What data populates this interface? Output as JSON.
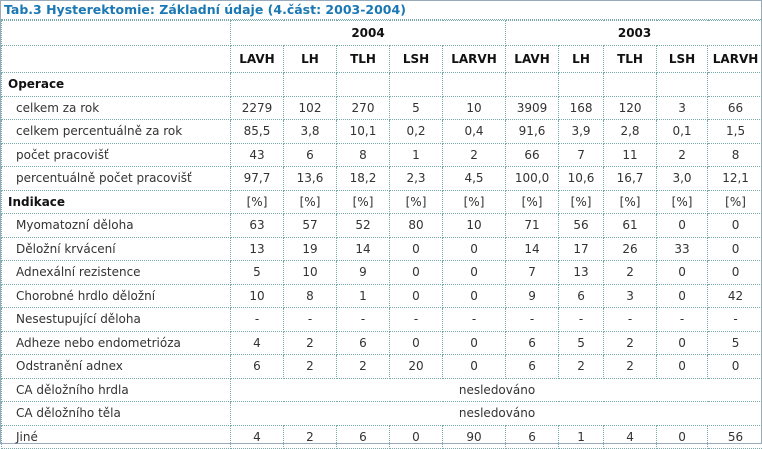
{
  "title": "Tab.3 Hysterektomie: Základní údaje (4.část: 2003-2004)",
  "years": [
    "2004",
    "2003"
  ],
  "columns": [
    "LAVH",
    "LH",
    "TLH",
    "LSH",
    "LARVH",
    "LAVH",
    "LH",
    "TLH",
    "LSH",
    "LARVH"
  ],
  "rows": [
    {
      "type": "section",
      "label": "Operace",
      "cells": []
    },
    {
      "type": "data",
      "label": "celkem za rok",
      "cells": [
        "2279",
        "102",
        "270",
        "5",
        "10",
        "3909",
        "168",
        "120",
        "3",
        "66"
      ]
    },
    {
      "type": "data",
      "label": "celkem percentuálně za rok",
      "cells": [
        "85,5",
        "3,8",
        "10,1",
        "0,2",
        "0,4",
        "91,6",
        "3,9",
        "2,8",
        "0,1",
        "1,5"
      ]
    },
    {
      "type": "data",
      "label": "počet pracovišť",
      "cells": [
        "43",
        "6",
        "8",
        "1",
        "2",
        "66",
        "7",
        "11",
        "2",
        "8"
      ]
    },
    {
      "type": "data",
      "label": "percentuálně počet pracovišť",
      "cells": [
        "97,7",
        "13,6",
        "18,2",
        "2,3",
        "4,5",
        "100,0",
        "10,6",
        "16,7",
        "3,0",
        "12,1"
      ]
    },
    {
      "type": "section",
      "label": "Indikace",
      "cells": [
        "[%]",
        "[%]",
        "[%]",
        "[%]",
        "[%]",
        "[%]",
        "[%]",
        "[%]",
        "[%]",
        "[%]"
      ]
    },
    {
      "type": "data",
      "label": "Myomatozní děloha",
      "cells": [
        "63",
        "57",
        "52",
        "80",
        "10",
        "71",
        "56",
        "61",
        "0",
        "0"
      ]
    },
    {
      "type": "data",
      "label": "Děložní krvácení",
      "cells": [
        "13",
        "19",
        "14",
        "0",
        "0",
        "14",
        "17",
        "26",
        "33",
        "0"
      ]
    },
    {
      "type": "data",
      "label": "Adnexální rezistence",
      "cells": [
        "5",
        "10",
        "9",
        "0",
        "0",
        "7",
        "13",
        "2",
        "0",
        "0"
      ]
    },
    {
      "type": "data",
      "label": "Chorobné hrdlo děložní",
      "cells": [
        "10",
        "8",
        "1",
        "0",
        "0",
        "9",
        "6",
        "3",
        "0",
        "42"
      ]
    },
    {
      "type": "data",
      "label": "Nesestupující děloha",
      "cells": [
        "-",
        "-",
        "-",
        "-",
        "-",
        "-",
        "-",
        "-",
        "-",
        "-"
      ]
    },
    {
      "type": "data",
      "label": "Adheze nebo endometrióza",
      "cells": [
        "4",
        "2",
        "6",
        "0",
        "0",
        "6",
        "5",
        "2",
        "0",
        "5"
      ]
    },
    {
      "type": "data",
      "label": "Odstranění adnex",
      "cells": [
        "6",
        "2",
        "2",
        "20",
        "0",
        "6",
        "2",
        "2",
        "0",
        "0"
      ]
    },
    {
      "type": "merged",
      "label": "CA děložního hrdla",
      "text": "nesledováno"
    },
    {
      "type": "merged",
      "label": "CA děložního těla",
      "text": "nesledováno"
    },
    {
      "type": "data",
      "label": "Jiné",
      "cells": [
        "4",
        "2",
        "6",
        "0",
        "90",
        "6",
        "1",
        "4",
        "0",
        "56"
      ]
    }
  ]
}
